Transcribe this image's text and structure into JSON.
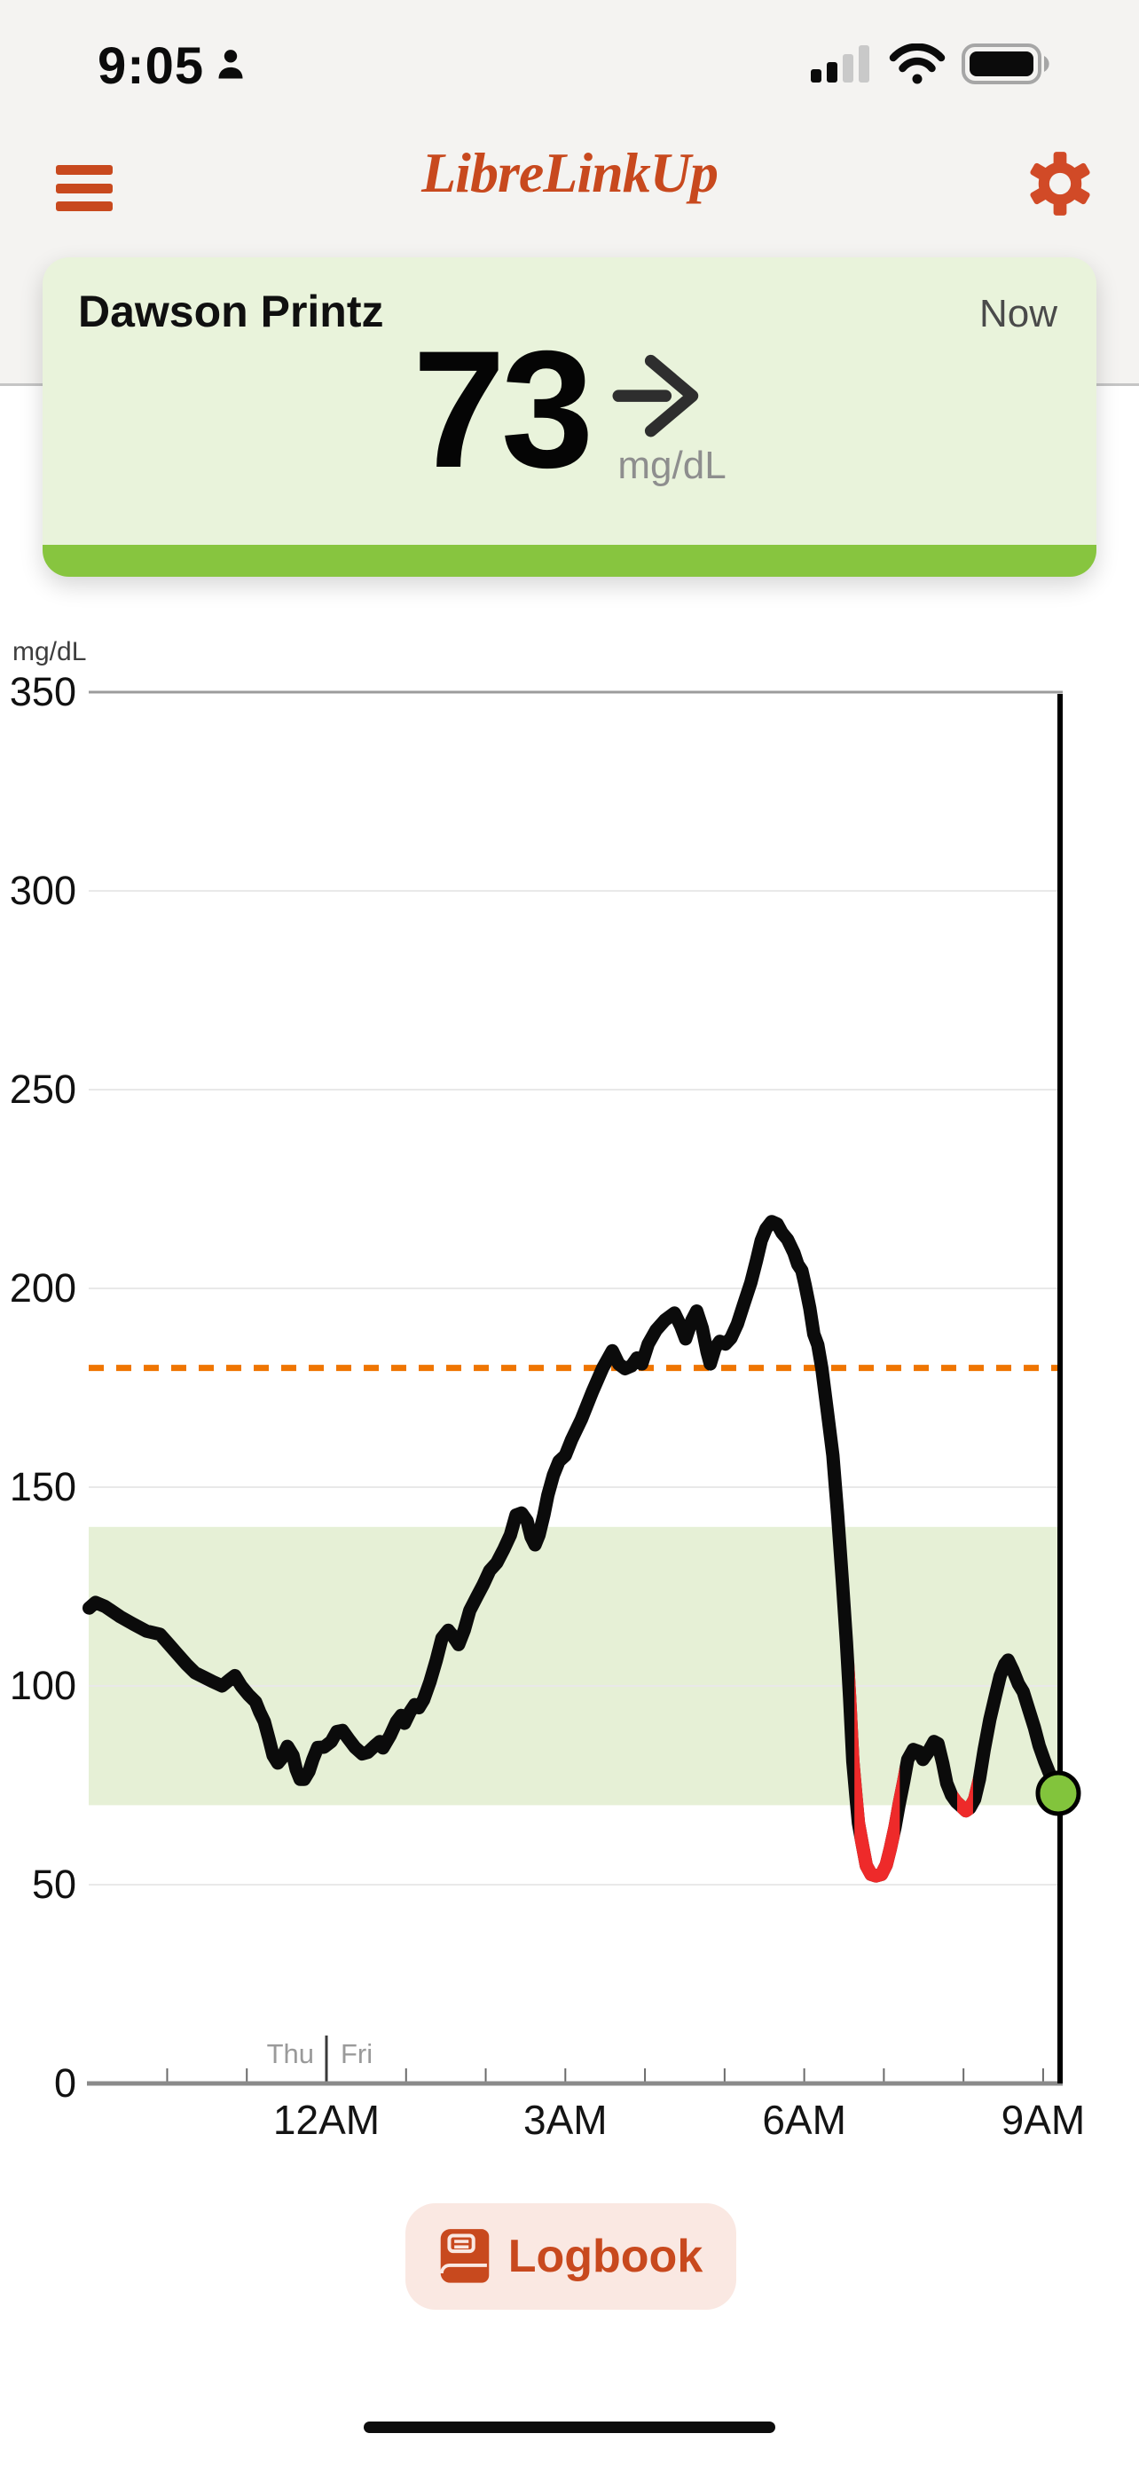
{
  "status_bar": {
    "time": "9:05",
    "person_icon": "person-silhouette",
    "cellular": "signal-2-of-4-bars",
    "wifi": "wifi-full",
    "battery": "battery-full"
  },
  "header": {
    "title": "LibreLinkUp",
    "menu_icon": "hamburger-menu",
    "settings_icon": "gear"
  },
  "patient_card": {
    "name": "Dawson Printz",
    "timing": "Now",
    "glucose_value": "73",
    "unit": "mg/dL",
    "trend": "steady-right-arrow"
  },
  "logbook_button": {
    "label": "Logbook",
    "icon": "logbook-book"
  },
  "colors": {
    "brand_orange": "#C8491E",
    "gear_orange": "#D14A27",
    "high_line": "#EF7502",
    "low_red": "#EE2A2A",
    "in_range_green": "#82C43C",
    "card_green": "#E9F3DB",
    "band_green": "#E6F0D6",
    "card_bar_green": "#87C53F",
    "grid_light": "#E9E9E9",
    "grid_top": "#9C9C9C",
    "axis_gray": "#8A8A8A"
  },
  "chart_data": {
    "type": "line",
    "title": "12-hour glucose trace",
    "y_axis": {
      "unit": "mg/dL",
      "min": 0,
      "max": 350,
      "ticks": [
        0,
        50,
        100,
        150,
        200,
        250,
        300,
        350
      ]
    },
    "x_axis": {
      "ticks": [
        {
          "hour": 0,
          "label": "12AM"
        },
        {
          "hour": 3,
          "label": "3AM"
        },
        {
          "hour": 6,
          "label": "6AM"
        },
        {
          "hour": 9,
          "label": "9AM"
        }
      ],
      "hour_ticks_from": -2,
      "hour_ticks_to": 9,
      "day_boundary": {
        "hour": 0,
        "left_label": "Thu",
        "right_label": "Fri"
      }
    },
    "target_range": {
      "low": 70,
      "high": 140
    },
    "high_threshold": 180,
    "current": {
      "hour": 9.19,
      "value": 73
    },
    "red_ranges": [
      [
        6.63,
        7.2
      ],
      [
        7.92,
        8.12
      ]
    ],
    "points": [
      [
        -2.98,
        119.6
      ],
      [
        -2.9,
        121
      ],
      [
        -2.78,
        120
      ],
      [
        -2.59,
        117.4
      ],
      [
        -2.43,
        115.6
      ],
      [
        -2.26,
        113.8
      ],
      [
        -2.09,
        113
      ],
      [
        -1.98,
        110.5
      ],
      [
        -1.87,
        108
      ],
      [
        -1.76,
        105.5
      ],
      [
        -1.65,
        103.3
      ],
      [
        -1.54,
        102.2
      ],
      [
        -1.43,
        101.1
      ],
      [
        -1.31,
        100
      ],
      [
        -1.22,
        101.5
      ],
      [
        -1.15,
        102.6
      ],
      [
        -1.07,
        100
      ],
      [
        -0.98,
        97.8
      ],
      [
        -0.89,
        96
      ],
      [
        -0.84,
        93.5
      ],
      [
        -0.78,
        91
      ],
      [
        -0.72,
        86.5
      ],
      [
        -0.67,
        82.5
      ],
      [
        -0.61,
        80.6
      ],
      [
        -0.56,
        81.8
      ],
      [
        -0.49,
        84.8
      ],
      [
        -0.42,
        82.5
      ],
      [
        -0.38,
        79
      ],
      [
        -0.33,
        76.5
      ],
      [
        -0.28,
        76.5
      ],
      [
        -0.22,
        78.5
      ],
      [
        -0.17,
        81.5
      ],
      [
        -0.11,
        84.5
      ],
      [
        -0.03,
        84.6
      ],
      [
        0.06,
        86
      ],
      [
        0.13,
        88.5
      ],
      [
        0.2,
        88.8
      ],
      [
        0.28,
        86.6
      ],
      [
        0.36,
        84.5
      ],
      [
        0.45,
        82.9
      ],
      [
        0.52,
        83.3
      ],
      [
        0.61,
        85
      ],
      [
        0.67,
        86
      ],
      [
        0.71,
        84.4
      ],
      [
        0.8,
        87.5
      ],
      [
        0.88,
        91
      ],
      [
        0.94,
        92.6
      ],
      [
        0.98,
        90.6
      ],
      [
        1.05,
        93.5
      ],
      [
        1.11,
        95.3
      ],
      [
        1.16,
        94.5
      ],
      [
        1.22,
        96.5
      ],
      [
        1.3,
        101
      ],
      [
        1.38,
        106.5
      ],
      [
        1.45,
        112
      ],
      [
        1.53,
        114
      ],
      [
        1.59,
        112.5
      ],
      [
        1.66,
        110.4
      ],
      [
        1.73,
        114
      ],
      [
        1.8,
        119
      ],
      [
        1.89,
        122.5
      ],
      [
        1.97,
        125.5
      ],
      [
        2.05,
        129
      ],
      [
        2.14,
        131
      ],
      [
        2.23,
        134.5
      ],
      [
        2.31,
        138
      ],
      [
        2.38,
        143
      ],
      [
        2.45,
        143.5
      ],
      [
        2.52,
        141.5
      ],
      [
        2.57,
        137.5
      ],
      [
        2.62,
        135.5
      ],
      [
        2.67,
        138
      ],
      [
        2.73,
        143
      ],
      [
        2.78,
        148
      ],
      [
        2.85,
        153
      ],
      [
        2.92,
        156.5
      ],
      [
        3,
        158
      ],
      [
        3.08,
        162
      ],
      [
        3.2,
        167
      ],
      [
        3.34,
        174
      ],
      [
        3.47,
        180
      ],
      [
        3.59,
        184.3
      ],
      [
        3.67,
        181
      ],
      [
        3.75,
        179.8
      ],
      [
        3.83,
        180.5
      ],
      [
        3.9,
        182.5
      ],
      [
        3.96,
        181
      ],
      [
        4.04,
        186
      ],
      [
        4.14,
        189.5
      ],
      [
        4.25,
        192
      ],
      [
        4.37,
        193.8
      ],
      [
        4.45,
        190.5
      ],
      [
        4.51,
        187.3
      ],
      [
        4.59,
        192
      ],
      [
        4.65,
        194.3
      ],
      [
        4.72,
        190
      ],
      [
        4.78,
        184
      ],
      [
        4.82,
        181
      ],
      [
        4.88,
        185
      ],
      [
        4.94,
        186.7
      ],
      [
        5.01,
        186
      ],
      [
        5.08,
        187.5
      ],
      [
        5.16,
        191
      ],
      [
        5.24,
        196
      ],
      [
        5.33,
        201.5
      ],
      [
        5.4,
        207
      ],
      [
        5.46,
        212
      ],
      [
        5.52,
        215
      ],
      [
        5.59,
        216.8
      ],
      [
        5.66,
        216.2
      ],
      [
        5.72,
        214
      ],
      [
        5.79,
        212.3
      ],
      [
        5.87,
        209
      ],
      [
        5.92,
        206
      ],
      [
        5.97,
        204.5
      ],
      [
        6.01,
        201
      ],
      [
        6.07,
        195
      ],
      [
        6.12,
        188.5
      ],
      [
        6.17,
        185.8
      ],
      [
        6.22,
        180
      ],
      [
        6.29,
        169
      ],
      [
        6.36,
        158
      ],
      [
        6.42,
        143
      ],
      [
        6.48,
        126
      ],
      [
        6.53,
        111
      ],
      [
        6.57,
        97
      ],
      [
        6.61,
        81
      ],
      [
        6.65,
        72
      ],
      [
        6.68,
        65.5
      ],
      [
        6.73,
        60
      ],
      [
        6.78,
        54.8
      ],
      [
        6.84,
        52.6
      ],
      [
        6.9,
        52.2
      ],
      [
        6.97,
        52.6
      ],
      [
        7.03,
        55
      ],
      [
        7.08,
        59
      ],
      [
        7.14,
        64.5
      ],
      [
        7.19,
        70
      ],
      [
        7.25,
        76
      ],
      [
        7.3,
        81.5
      ],
      [
        7.37,
        84
      ],
      [
        7.44,
        83.5
      ],
      [
        7.49,
        81.5
      ],
      [
        7.56,
        83.5
      ],
      [
        7.63,
        86
      ],
      [
        7.68,
        85.5
      ],
      [
        7.74,
        80.5
      ],
      [
        7.79,
        75.5
      ],
      [
        7.85,
        72.5
      ],
      [
        7.91,
        70.8
      ],
      [
        7.97,
        69.7
      ],
      [
        8.03,
        68.6
      ],
      [
        8.08,
        69.3
      ],
      [
        8.14,
        71.5
      ],
      [
        8.2,
        76.5
      ],
      [
        8.26,
        84
      ],
      [
        8.33,
        91.5
      ],
      [
        8.4,
        97.5
      ],
      [
        8.46,
        102.5
      ],
      [
        8.52,
        105.5
      ],
      [
        8.56,
        106.5
      ],
      [
        8.62,
        104
      ],
      [
        8.69,
        100.5
      ],
      [
        8.75,
        98.5
      ],
      [
        8.82,
        94
      ],
      [
        8.89,
        89.5
      ],
      [
        8.95,
        85
      ],
      [
        9.02,
        81
      ],
      [
        9.09,
        77.5
      ],
      [
        9.14,
        74.8
      ],
      [
        9.19,
        73
      ]
    ]
  }
}
